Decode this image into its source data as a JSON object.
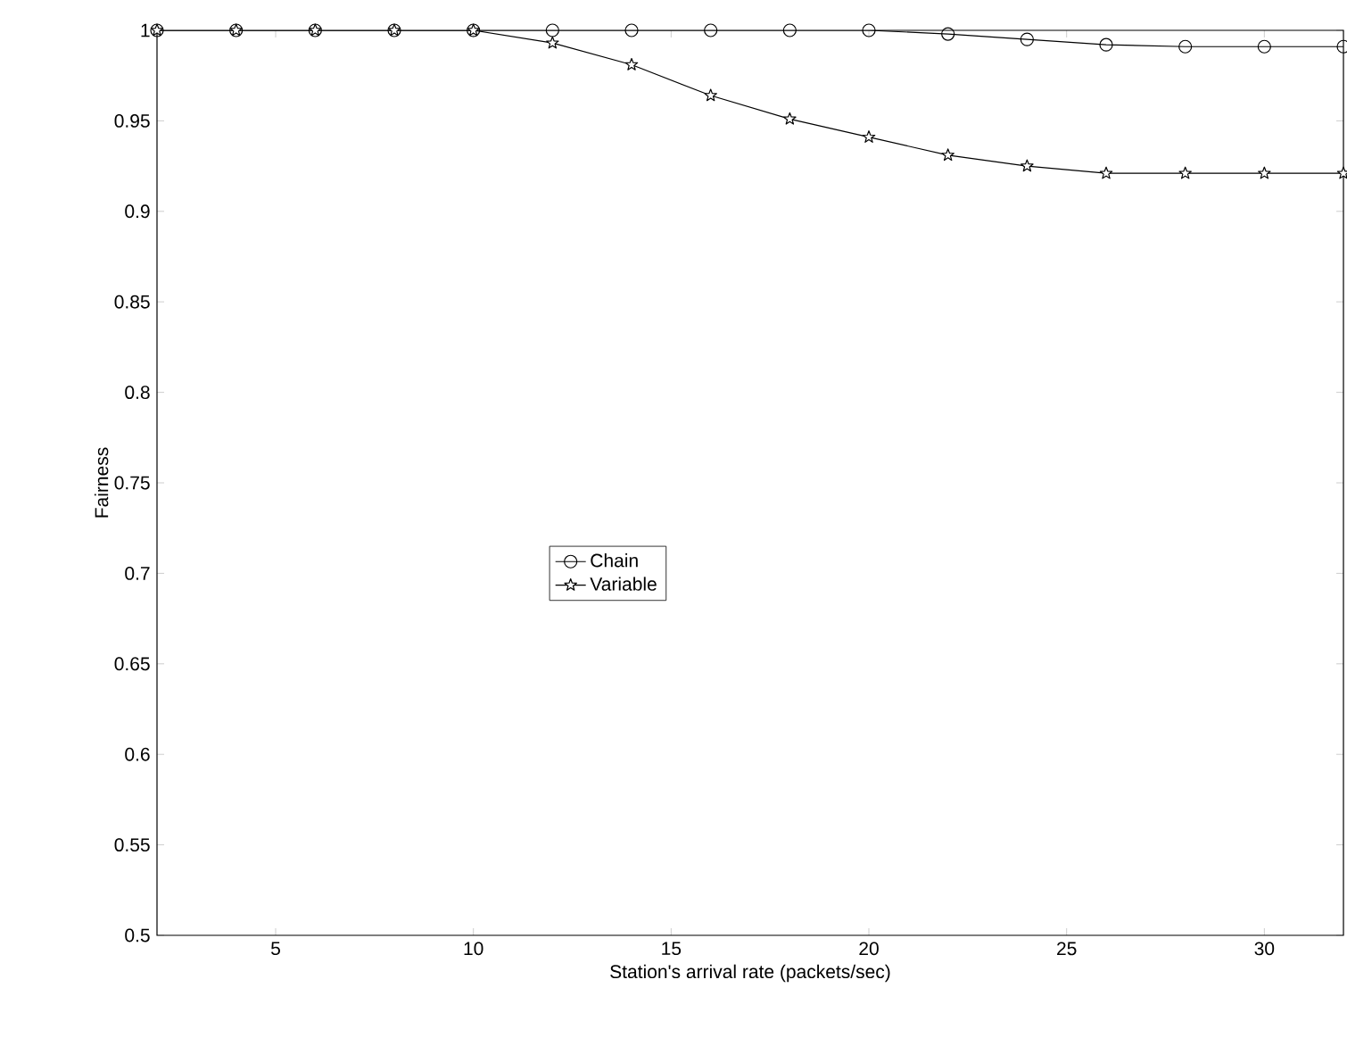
{
  "chart_data": {
    "type": "line",
    "xlabel": "Station's arrival rate (packets/sec)",
    "ylabel": "Fairness",
    "xlim": [
      2,
      32
    ],
    "ylim": [
      0.5,
      1
    ],
    "xticks": [
      5,
      10,
      15,
      20,
      25,
      30
    ],
    "yticks": [
      0.5,
      0.55,
      0.6,
      0.65,
      0.7,
      0.75,
      0.8,
      0.85,
      0.9,
      0.95,
      1
    ],
    "x": [
      2,
      4,
      6,
      8,
      10,
      12,
      14,
      16,
      18,
      20,
      22,
      24,
      26,
      28,
      30,
      32
    ],
    "legend": "center",
    "grid": false,
    "line_style": "solid",
    "series": [
      {
        "name": "Chain",
        "color": "#000000",
        "marker": "circle",
        "values": [
          1,
          1,
          1,
          1,
          1,
          1,
          1,
          1,
          1,
          1,
          0.998,
          0.995,
          0.992,
          0.991,
          0.991,
          0.991
        ]
      },
      {
        "name": "Variable",
        "color": "#000000",
        "marker": "star",
        "values": [
          1,
          1,
          1,
          1,
          1,
          0.993,
          0.981,
          0.964,
          0.951,
          0.941,
          0.931,
          0.925,
          0.921,
          0.921,
          0.921,
          0.921
        ]
      }
    ]
  }
}
